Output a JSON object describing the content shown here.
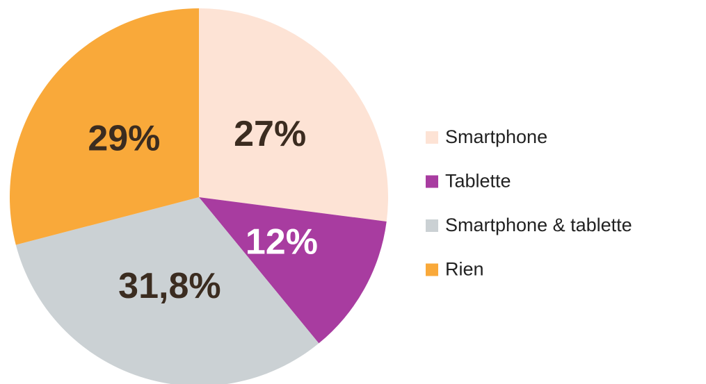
{
  "chart_data": {
    "type": "pie",
    "categories": [
      "Smartphone",
      "Tablette",
      "Smartphone & tablette",
      "Rien"
    ],
    "values": [
      27,
      12,
      31.8,
      29
    ],
    "value_labels": [
      "27%",
      "12%",
      "31,8%",
      "29%"
    ],
    "colors": [
      "#fde3d5",
      "#a83ca0",
      "#cbd1d4",
      "#f9a93a"
    ],
    "value_label_colors": [
      "#3b2c20",
      "#ffffff",
      "#3b2c20",
      "#3b2c20"
    ],
    "legend": "right"
  }
}
